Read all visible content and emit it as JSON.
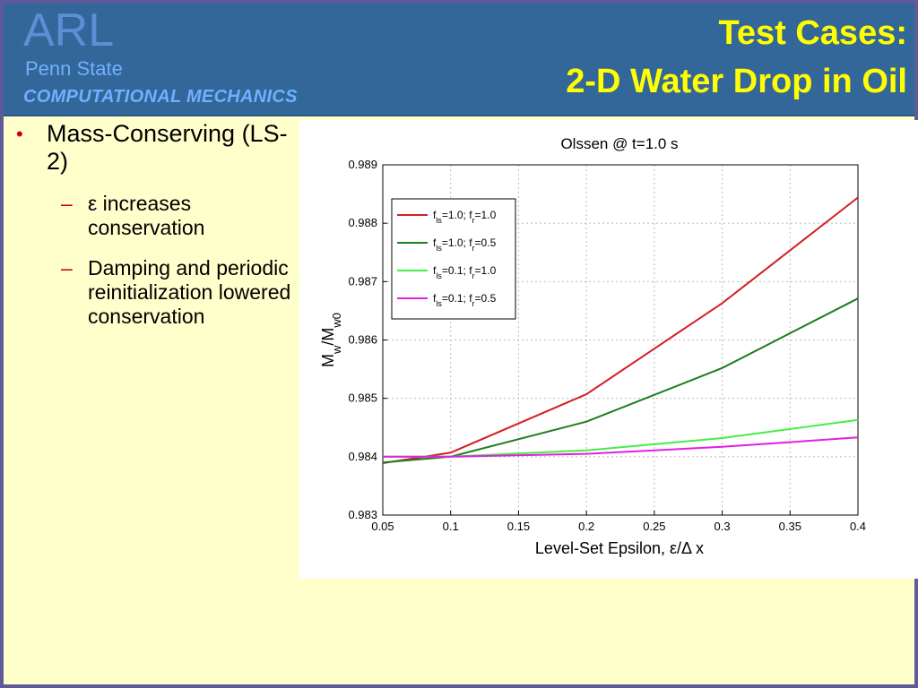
{
  "header": {
    "logo": "ARL",
    "org": "Penn State",
    "dept": "COMPUTATIONAL MECHANICS",
    "title_line1": "Test Cases:",
    "title_line2": "2-D Water Drop in Oil"
  },
  "bullets": {
    "main": "Mass-Conserving (LS-2)",
    "sub1": "ε increases conservation",
    "sub2": "Damping and periodic reinitialization lowered conservation"
  },
  "colors": {
    "header_bg": "#336699",
    "title": "#ffff00",
    "slide_bg": "#ffffcc",
    "bullet_marker": "#cc0000"
  },
  "chart_data": {
    "type": "line",
    "title": "Olssen @ t=1.0 s",
    "xlabel": "Level-Set Epsilon, ε/Δ x",
    "ylabel": "M_w/M_w0",
    "xlim": [
      0.05,
      0.4
    ],
    "ylim": [
      0.983,
      0.989
    ],
    "xticks": [
      0.05,
      0.1,
      0.15,
      0.2,
      0.25,
      0.3,
      0.35,
      0.4
    ],
    "xtick_labels": [
      "0.05",
      "0.1",
      "0.15",
      "0.2",
      "0.25",
      "0.3",
      "0.35",
      "0.4"
    ],
    "yticks": [
      0.983,
      0.984,
      0.985,
      0.986,
      0.987,
      0.988,
      0.989
    ],
    "ytick_labels": [
      "0.983",
      "0.984",
      "0.985",
      "0.986",
      "0.987",
      "0.988",
      "0.989"
    ],
    "grid": true,
    "legend_position": "top-left",
    "x": [
      0.05,
      0.1,
      0.2,
      0.3,
      0.4
    ],
    "series": [
      {
        "name": "f_ls=1.0; f_r=1.0",
        "color": "#d42020",
        "values": [
          983.89,
          984.07,
          985.07,
          986.63,
          988.44
        ]
      },
      {
        "name": "f_ls=1.0; f_r=0.5",
        "color": "#1e7d1e",
        "values": [
          983.9,
          984.0,
          984.6,
          985.52,
          986.71
        ]
      },
      {
        "name": "f_ls=0.1; f_r=1.0",
        "color": "#44ee44",
        "values": [
          984.0,
          984.0,
          984.11,
          984.32,
          984.63
        ]
      },
      {
        "name": "f_ls=0.1; f_r=0.5",
        "color": "#e020e0",
        "values": [
          984.0,
          984.0,
          984.05,
          984.17,
          984.33
        ]
      }
    ],
    "value_scale_note": "values are y × 1000"
  }
}
